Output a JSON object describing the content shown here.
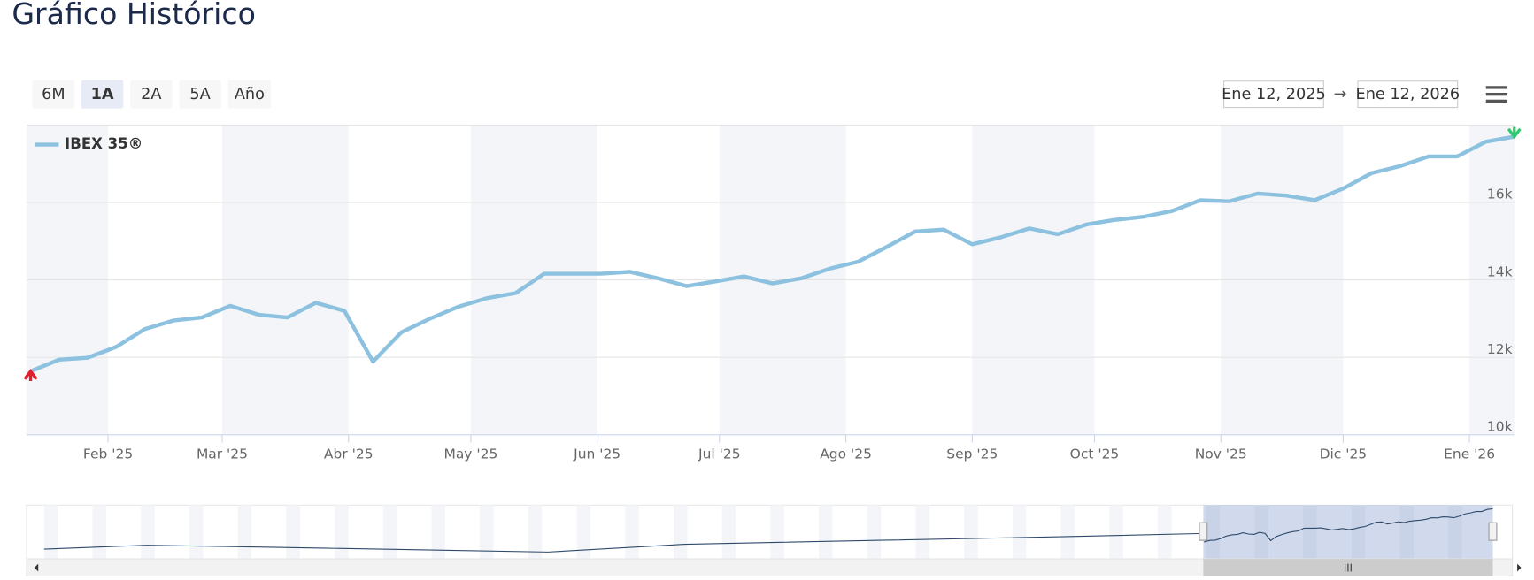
{
  "title": "Gráfico Histórico",
  "range_buttons": [
    "6M",
    "1A",
    "2A",
    "5A",
    "Año"
  ],
  "selected_button": "1A",
  "date_from": "Ene 12, 2025",
  "arrow": "→",
  "date_to": "Ene 12, 2026",
  "chart_data": {
    "type": "line",
    "x": [
      "2025-01-13",
      "2025-01-20",
      "2025-01-27",
      "2025-02-03",
      "2025-02-10",
      "2025-02-17",
      "2025-02-24",
      "2025-03-03",
      "2025-03-10",
      "2025-03-17",
      "2025-03-24",
      "2025-03-31",
      "2025-04-07",
      "2025-04-14",
      "2025-04-21",
      "2025-04-28",
      "2025-05-05",
      "2025-05-12",
      "2025-05-19",
      "2025-05-26",
      "2025-06-02",
      "2025-06-09",
      "2025-06-16",
      "2025-06-23",
      "2025-06-30",
      "2025-07-07",
      "2025-07-14",
      "2025-07-21",
      "2025-07-28",
      "2025-08-04",
      "2025-08-11",
      "2025-08-18",
      "2025-08-25",
      "2025-09-01",
      "2025-09-08",
      "2025-09-15",
      "2025-09-22",
      "2025-09-29",
      "2025-10-06",
      "2025-10-13",
      "2025-10-20",
      "2025-10-27",
      "2025-11-03",
      "2025-11-10",
      "2025-11-17",
      "2025-11-24",
      "2025-12-01",
      "2025-12-08",
      "2025-12-15",
      "2025-12-22",
      "2025-12-29",
      "2026-01-05",
      "2026-01-12"
    ],
    "series": [
      {
        "name": "IBEX 35®",
        "color": "#8cc1df",
        "values": [
          11640,
          11940,
          11990,
          12270,
          12730,
          12950,
          13030,
          13330,
          13100,
          13030,
          13410,
          13200,
          11890,
          12650,
          13000,
          13310,
          13530,
          13660,
          14160,
          14160,
          14160,
          14210,
          14040,
          13840,
          13960,
          14090,
          13910,
          14040,
          14290,
          14470,
          14850,
          15250,
          15300,
          14920,
          15100,
          15330,
          15180,
          15430,
          15550,
          15630,
          15780,
          16060,
          16030,
          16230,
          16180,
          16060,
          16360,
          16760,
          16940,
          17190,
          17190,
          17570,
          17700
        ]
      }
    ],
    "xlim": [
      "2025-01-12",
      "2026-01-12"
    ],
    "xticks": [
      {
        "value": "2025-02-01",
        "label": "Feb '25"
      },
      {
        "value": "2025-03-01",
        "label": "Mar '25"
      },
      {
        "value": "2025-04-01",
        "label": "Abr '25"
      },
      {
        "value": "2025-05-01",
        "label": "May '25"
      },
      {
        "value": "2025-06-01",
        "label": "Jun '25"
      },
      {
        "value": "2025-07-01",
        "label": "Jul '25"
      },
      {
        "value": "2025-08-01",
        "label": "Ago '25"
      },
      {
        "value": "2025-09-01",
        "label": "Sep '25"
      },
      {
        "value": "2025-10-01",
        "label": "Oct '25"
      },
      {
        "value": "2025-11-01",
        "label": "Nov '25"
      },
      {
        "value": "2025-12-01",
        "label": "Dic '25"
      },
      {
        "value": "2026-01-01",
        "label": "Ene '26"
      }
    ],
    "ylim": [
      10000,
      18000
    ],
    "yticks": [
      {
        "value": 10000,
        "label": "10k"
      },
      {
        "value": 12000,
        "label": "12k"
      },
      {
        "value": 14000,
        "label": "14k"
      },
      {
        "value": 16000,
        "label": "16k"
      }
    ],
    "grid": true,
    "legend": "top-left"
  }
}
